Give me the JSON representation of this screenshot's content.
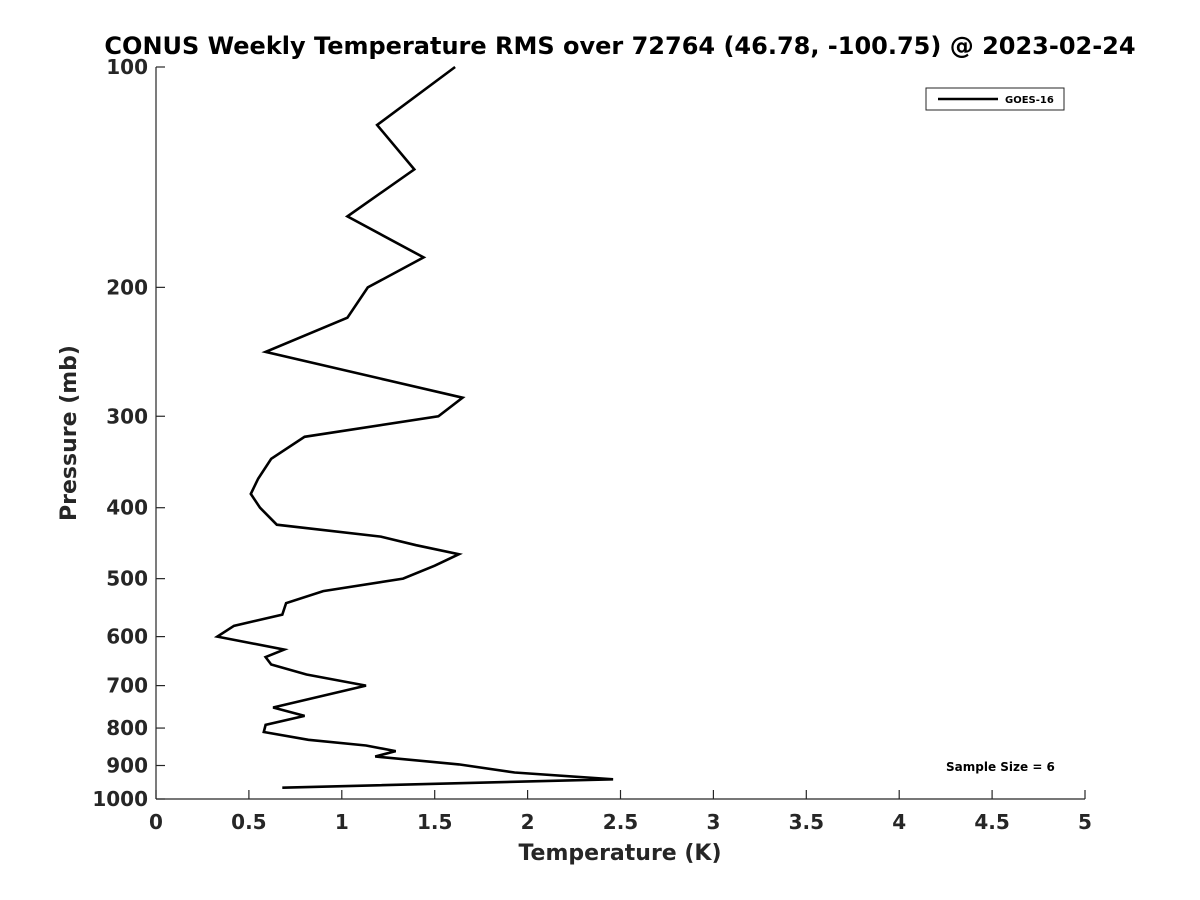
{
  "chart_data": {
    "type": "line",
    "title": "CONUS Weekly Temperature RMS over 72764 (46.78, -100.75) @ 2023-02-24",
    "xlabel": "Temperature (K)",
    "ylabel": "Pressure (mb)",
    "xlim": [
      0,
      5
    ],
    "ylim": [
      100,
      1000
    ],
    "y_scale": "log",
    "y_reversed": true,
    "x_ticks": [
      "0",
      "0.5",
      "1",
      "1.5",
      "2",
      "2.5",
      "3",
      "3.5",
      "4",
      "4.5",
      "5"
    ],
    "x_tick_values": [
      0,
      0.5,
      1,
      1.5,
      2,
      2.5,
      3,
      3.5,
      4,
      4.5,
      5
    ],
    "y_ticks": [
      "100",
      "200",
      "300",
      "400",
      "500",
      "600",
      "700",
      "800",
      "900",
      "1000"
    ],
    "y_tick_values": [
      100,
      200,
      300,
      400,
      500,
      600,
      700,
      800,
      900,
      1000
    ],
    "grid": false,
    "legend_position": "top-right",
    "annotation": "Sample Size = 6",
    "series": [
      {
        "name": "GOES-16",
        "color": "#000000",
        "points": [
          [
            1.61,
            100
          ],
          [
            1.19,
            120
          ],
          [
            1.39,
            138
          ],
          [
            1.03,
            160
          ],
          [
            1.44,
            182
          ],
          [
            1.14,
            200
          ],
          [
            1.03,
            220
          ],
          [
            0.59,
            245
          ],
          [
            1.65,
            283
          ],
          [
            1.52,
            300
          ],
          [
            0.8,
            320
          ],
          [
            0.62,
            343
          ],
          [
            0.55,
            365
          ],
          [
            0.51,
            383
          ],
          [
            0.56,
            400
          ],
          [
            0.65,
            422
          ],
          [
            1.21,
            438
          ],
          [
            1.4,
            450
          ],
          [
            1.63,
            463
          ],
          [
            1.5,
            480
          ],
          [
            1.33,
            500
          ],
          [
            0.9,
            520
          ],
          [
            0.7,
            540
          ],
          [
            0.68,
            560
          ],
          [
            0.42,
            580
          ],
          [
            0.33,
            600
          ],
          [
            0.69,
            625
          ],
          [
            0.59,
            640
          ],
          [
            0.62,
            655
          ],
          [
            0.81,
            676
          ],
          [
            1.13,
            700
          ],
          [
            0.63,
            750
          ],
          [
            0.8,
            770
          ],
          [
            0.59,
            792
          ],
          [
            0.58,
            810
          ],
          [
            0.82,
            830
          ],
          [
            1.13,
            845
          ],
          [
            1.29,
            860
          ],
          [
            1.18,
            875
          ],
          [
            1.63,
            897
          ],
          [
            1.93,
            920
          ],
          [
            2.46,
            940
          ],
          [
            0.68,
            965
          ]
        ]
      }
    ]
  }
}
